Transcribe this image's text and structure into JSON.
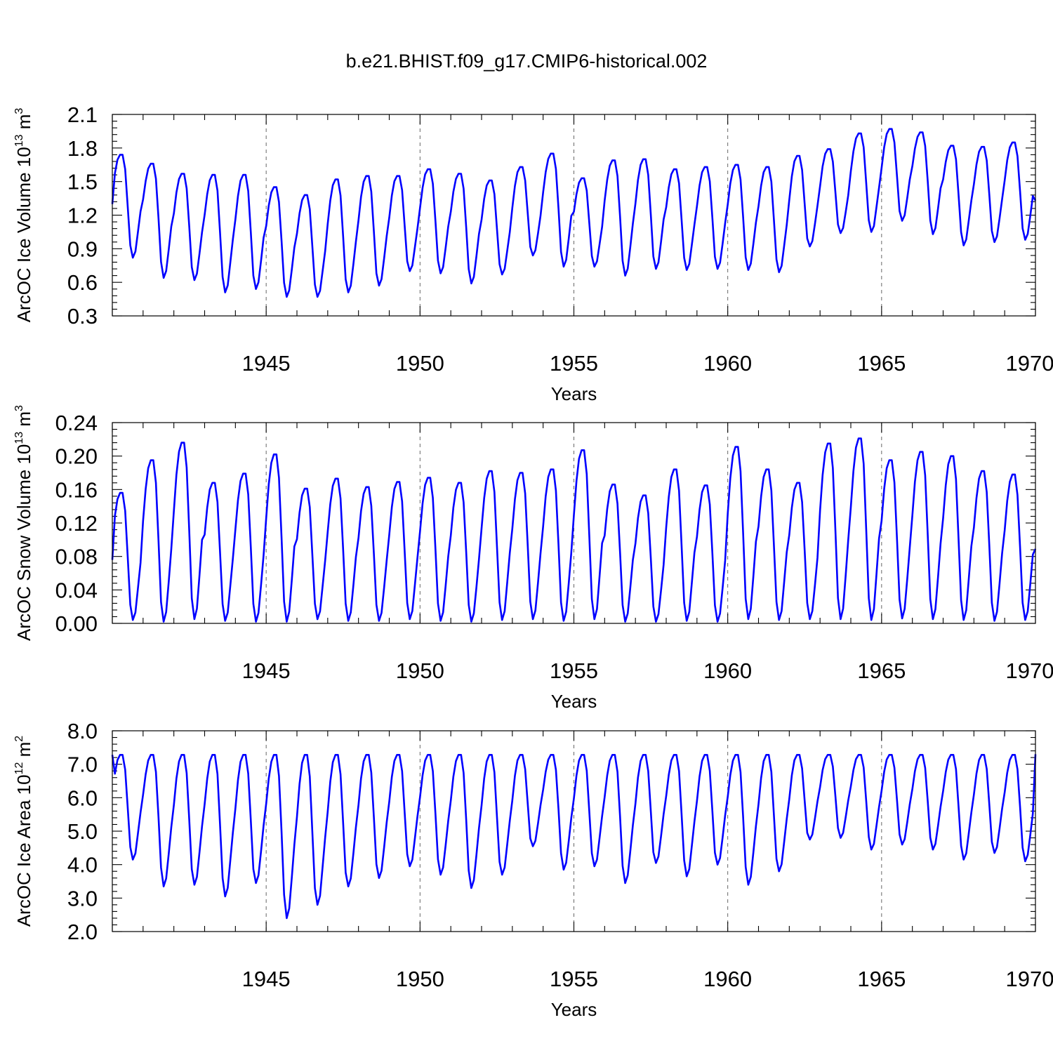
{
  "figure_title": "b.e21.BHIST.f09_g17.CMIP6-historical.002",
  "chart_data": [
    {
      "type": "line",
      "title": "b.e21.BHIST.f09_g17.CMIP6-historical.002",
      "xlabel": "Years",
      "ylabel_main": "ArcOC Ice Volume 10",
      "ylabel_exp": "13",
      "ylabel_unit": " m",
      "ylabel_unit_exp": "3",
      "xlim": [
        1940.0,
        1970.0
      ],
      "ylim": [
        0.3,
        2.1
      ],
      "x_tick_labels": [
        "1945",
        "1950",
        "1955",
        "1960",
        "1965",
        "1970"
      ],
      "y_tick_labels": [
        "2.1",
        "1.8",
        "1.5",
        "1.2",
        "0.9",
        "0.6",
        "0.3"
      ],
      "series": [
        {
          "name": "ArcOC Ice Volume",
          "color": "#0000ff",
          "years": [
            1940,
            1941,
            1942,
            1943,
            1944,
            1945,
            1946,
            1947,
            1948,
            1949,
            1950,
            1951,
            1952,
            1953,
            1954,
            1955,
            1956,
            1957,
            1958,
            1959,
            1960,
            1961,
            1962,
            1963,
            1964,
            1965,
            1966,
            1967,
            1968,
            1969
          ],
          "annual_max": [
            1.74,
            1.66,
            1.57,
            1.56,
            1.56,
            1.45,
            1.38,
            1.52,
            1.55,
            1.55,
            1.61,
            1.57,
            1.51,
            1.63,
            1.75,
            1.53,
            1.69,
            1.7,
            1.61,
            1.63,
            1.65,
            1.63,
            1.73,
            1.79,
            1.93,
            1.97,
            1.94,
            1.82,
            1.81,
            1.85
          ],
          "annual_min": [
            0.82,
            0.64,
            0.62,
            0.51,
            0.54,
            0.47,
            0.47,
            0.51,
            0.57,
            0.7,
            0.68,
            0.59,
            0.67,
            0.84,
            0.74,
            0.74,
            0.66,
            0.72,
            0.71,
            0.72,
            0.71,
            0.69,
            0.92,
            1.04,
            1.05,
            1.15,
            1.03,
            0.93,
            0.96,
            0.98
          ],
          "start_value": 1.3,
          "end_value": 1.33
        }
      ]
    },
    {
      "type": "line",
      "xlabel": "Years",
      "ylabel_main": "ArcOC Snow Volume 10",
      "ylabel_exp": "13",
      "ylabel_unit": " m",
      "ylabel_unit_exp": "3",
      "xlim": [
        1940.0,
        1970.0
      ],
      "ylim": [
        0.0,
        0.24
      ],
      "x_tick_labels": [
        "1945",
        "1950",
        "1955",
        "1960",
        "1965",
        "1970"
      ],
      "y_tick_labels": [
        "0.24",
        "0.20",
        "0.16",
        "0.12",
        "0.08",
        "0.04",
        "0.00"
      ],
      "series": [
        {
          "name": "ArcOC Snow Volume",
          "color": "#0000ff",
          "years": [
            1940,
            1941,
            1942,
            1943,
            1944,
            1945,
            1946,
            1947,
            1948,
            1949,
            1950,
            1951,
            1952,
            1953,
            1954,
            1955,
            1956,
            1957,
            1958,
            1959,
            1960,
            1961,
            1962,
            1963,
            1964,
            1965,
            1966,
            1967,
            1968,
            1969
          ],
          "annual_max": [
            0.156,
            0.195,
            0.216,
            0.168,
            0.179,
            0.202,
            0.161,
            0.173,
            0.163,
            0.169,
            0.174,
            0.168,
            0.182,
            0.18,
            0.184,
            0.207,
            0.166,
            0.153,
            0.184,
            0.165,
            0.211,
            0.184,
            0.168,
            0.215,
            0.221,
            0.195,
            0.205,
            0.2,
            0.182,
            0.178
          ],
          "annual_min": [
            0.004,
            0.002,
            0.005,
            0.003,
            0.002,
            0.002,
            0.005,
            0.003,
            0.003,
            0.005,
            0.003,
            0.002,
            0.004,
            0.005,
            0.003,
            0.005,
            0.002,
            0.002,
            0.003,
            0.002,
            0.005,
            0.004,
            0.005,
            0.005,
            0.004,
            0.006,
            0.005,
            0.004,
            0.003,
            0.004
          ],
          "start_value": 0.076,
          "end_value": 0.089
        }
      ]
    },
    {
      "type": "line",
      "xlabel": "Years",
      "ylabel_main": "ArcOC Ice Area 10",
      "ylabel_exp": "12",
      "ylabel_unit": " m",
      "ylabel_unit_exp": "2",
      "xlim": [
        1940.0,
        1970.0
      ],
      "ylim": [
        2.0,
        8.0
      ],
      "x_tick_labels": [
        "1945",
        "1950",
        "1955",
        "1960",
        "1965",
        "1970"
      ],
      "y_tick_labels": [
        "8.0",
        "7.0",
        "6.0",
        "5.0",
        "4.0",
        "3.0",
        "2.0"
      ],
      "series": [
        {
          "name": "ArcOC Ice Area",
          "color": "#0000ff",
          "years": [
            1940,
            1941,
            1942,
            1943,
            1944,
            1945,
            1946,
            1947,
            1948,
            1949,
            1950,
            1951,
            1952,
            1953,
            1954,
            1955,
            1956,
            1957,
            1958,
            1959,
            1960,
            1961,
            1962,
            1963,
            1964,
            1965,
            1966,
            1967,
            1968,
            1969
          ],
          "annual_max": [
            7.28,
            7.28,
            7.28,
            7.28,
            7.28,
            7.28,
            7.28,
            7.28,
            7.28,
            7.28,
            7.28,
            7.28,
            7.28,
            7.28,
            7.28,
            7.28,
            7.28,
            7.28,
            7.28,
            7.28,
            7.28,
            7.28,
            7.28,
            7.28,
            7.28,
            7.28,
            7.28,
            7.28,
            7.28,
            7.28
          ],
          "annual_min": [
            4.15,
            3.35,
            3.4,
            3.05,
            3.45,
            2.4,
            2.8,
            3.35,
            3.6,
            3.95,
            3.7,
            3.3,
            3.7,
            4.55,
            3.85,
            3.95,
            3.45,
            4.05,
            3.65,
            4.0,
            3.4,
            3.8,
            4.75,
            4.8,
            4.45,
            4.6,
            4.45,
            4.15,
            4.35,
            4.1
          ],
          "start_value": 7.28,
          "end_value": 7.3
        }
      ]
    }
  ]
}
